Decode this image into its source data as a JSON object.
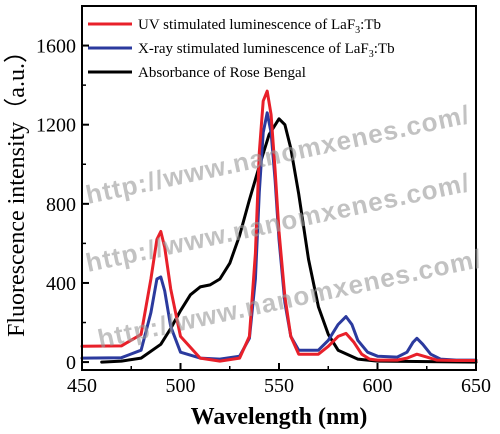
{
  "chart_data": {
    "type": "line",
    "xlabel": "Wavelength (nm)",
    "ylabel": "Fluorescence intensity（a.u.）",
    "xlim": [
      450,
      650
    ],
    "ylim": [
      -40,
      1800
    ],
    "xticks": [
      450,
      500,
      550,
      600,
      650
    ],
    "yticks": [
      0,
      400,
      800,
      1200,
      1600
    ],
    "grid": false,
    "legend_position": "top-left",
    "series": [
      {
        "name": "UV stimulated luminescence of LaF3:Tb",
        "legend_main": "UV stimulated luminescence of LaF",
        "legend_sub": "3",
        "legend_tail": ":Tb",
        "color": "#e8202a",
        "x": [
          450,
          470,
          480,
          485,
          488,
          490,
          492,
          495,
          500,
          510,
          520,
          530,
          535,
          538,
          540,
          542,
          544,
          546,
          548,
          550,
          553,
          556,
          560,
          570,
          575,
          580,
          584,
          588,
          592,
          596,
          600,
          610,
          615,
          620,
          625,
          630,
          640,
          650
        ],
        "y": [
          80,
          82,
          140,
          420,
          620,
          660,
          580,
          370,
          130,
          20,
          5,
          20,
          130,
          550,
          1060,
          1320,
          1370,
          1250,
          970,
          660,
          330,
          130,
          40,
          40,
          80,
          130,
          145,
          100,
          40,
          15,
          10,
          10,
          20,
          40,
          25,
          10,
          8,
          8
        ]
      },
      {
        "name": "X-ray stimulated luminescence of LaF3:Tb",
        "legend_main": "X-ray stimulated luminescence of LaF",
        "legend_sub": "3",
        "legend_tail": ":Tb",
        "color": "#2b3a9e",
        "x": [
          450,
          470,
          480,
          485,
          488,
          490,
          492,
          495,
          500,
          510,
          520,
          530,
          535,
          538,
          540,
          542,
          544,
          546,
          548,
          550,
          553,
          556,
          560,
          570,
          575,
          580,
          584,
          587,
          590,
          595,
          600,
          610,
          615,
          618,
          620,
          623,
          627,
          632,
          640,
          650
        ],
        "y": [
          20,
          22,
          60,
          250,
          420,
          430,
          360,
          180,
          50,
          20,
          15,
          30,
          120,
          420,
          860,
          1160,
          1260,
          1160,
          920,
          620,
          300,
          130,
          60,
          60,
          110,
          190,
          230,
          190,
          110,
          50,
          30,
          25,
          50,
          100,
          120,
          90,
          40,
          15,
          10,
          10
        ]
      },
      {
        "name": "Absorbance of Rose Bengal",
        "legend_main": "Absorbance of Rose Bengal",
        "legend_sub": "",
        "legend_tail": "",
        "color": "#000000",
        "x": [
          460,
          470,
          480,
          490,
          495,
          500,
          505,
          510,
          515,
          520,
          525,
          530,
          535,
          540,
          545,
          550,
          553,
          556,
          560,
          565,
          570,
          575,
          580,
          590,
          600,
          650
        ],
        "y": [
          0,
          5,
          20,
          90,
          170,
          260,
          340,
          380,
          390,
          420,
          500,
          640,
          820,
          990,
          1150,
          1230,
          1200,
          1080,
          850,
          520,
          280,
          140,
          60,
          15,
          5,
          0
        ]
      }
    ]
  },
  "watermarks": [
    "http://www.nanomxenes.com/",
    "http://www.nanomxenes.com/",
    "http://www.nanomxenes.com/"
  ]
}
